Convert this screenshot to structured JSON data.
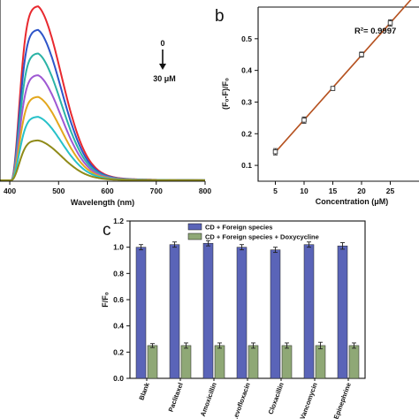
{
  "chart_data": [
    {
      "type": "line",
      "panel_label": "",
      "xlabel": "Wavelength (nm)",
      "ylabel": "",
      "xlim": [
        380,
        800
      ],
      "ylim": [
        0,
        1.0
      ],
      "x_ticks": [
        400,
        500,
        600,
        700,
        800
      ],
      "annotations": [
        "0",
        "30 μM"
      ],
      "series": [
        {
          "color": "#e8292f",
          "peak_x": 458,
          "peak_y": 0.96
        },
        {
          "color": "#2e55c9",
          "peak_x": 458,
          "peak_y": 0.83
        },
        {
          "color": "#2bb3a6",
          "peak_x": 458,
          "peak_y": 0.7
        },
        {
          "color": "#9e58d3",
          "peak_x": 458,
          "peak_y": 0.58
        },
        {
          "color": "#e3a71d",
          "peak_x": 458,
          "peak_y": 0.46
        },
        {
          "color": "#27c1c9",
          "peak_x": 458,
          "peak_y": 0.35
        },
        {
          "color": "#8f8a18",
          "peak_x": 458,
          "peak_y": 0.22
        }
      ]
    },
    {
      "type": "scatter",
      "panel_label": "b",
      "xlabel": "Concentration (μM)",
      "ylabel": "(F₀-F)/F₀",
      "annotation": "R²= 0.9997",
      "xlim": [
        2,
        30
      ],
      "ylim": [
        0.05,
        0.6
      ],
      "x_ticks": [
        5,
        10,
        15,
        20,
        25
      ],
      "x_tick_labels": [
        "5",
        "10",
        "15",
        "20",
        "25"
      ],
      "y_ticks": [
        0.1,
        0.2,
        0.3,
        0.4,
        0.5
      ],
      "y_tick_labels": [
        "0.1",
        "0.2",
        "0.3",
        "0.4",
        "0.5"
      ],
      "x": [
        5,
        10,
        15,
        20,
        25
      ],
      "y": [
        0.143,
        0.243,
        0.343,
        0.45,
        0.55
      ],
      "errors": [
        0.01,
        0.01,
        0.006,
        0.008,
        0.01
      ],
      "fit_color": "#b5511f",
      "point_color": "#ffffff"
    },
    {
      "type": "bar",
      "panel_label": "c",
      "xlabel": "",
      "ylabel": "F/F₀",
      "ylim": [
        0,
        1.2
      ],
      "y_ticks": [
        0,
        0.2,
        0.4,
        0.6,
        0.8,
        1.0,
        1.2
      ],
      "y_tick_labels": [
        "0.0",
        "0.2",
        "0.4",
        "0.6",
        "0.8",
        "1.0",
        "1.2"
      ],
      "categories": [
        "Blank",
        "Paclitaxel",
        "Amoxicillin",
        "Levofloxacin",
        "Cloxacillin",
        "Vancomycin",
        "Epinephrine"
      ],
      "legend_position": "top",
      "series": [
        {
          "name": "CD + Foreign species",
          "color": "#5a64b8",
          "values": [
            1.0,
            1.02,
            1.03,
            1.0,
            0.98,
            1.02,
            1.01
          ],
          "errors": [
            0.02,
            0.02,
            0.02,
            0.02,
            0.02,
            0.02,
            0.025
          ]
        },
        {
          "name": "CD + Foreign species + Doxycycline",
          "color": "#8fa876",
          "values": [
            0.25,
            0.25,
            0.25,
            0.25,
            0.25,
            0.25,
            0.25
          ],
          "errors": [
            0.015,
            0.02,
            0.02,
            0.02,
            0.02,
            0.025,
            0.02
          ]
        }
      ]
    }
  ]
}
